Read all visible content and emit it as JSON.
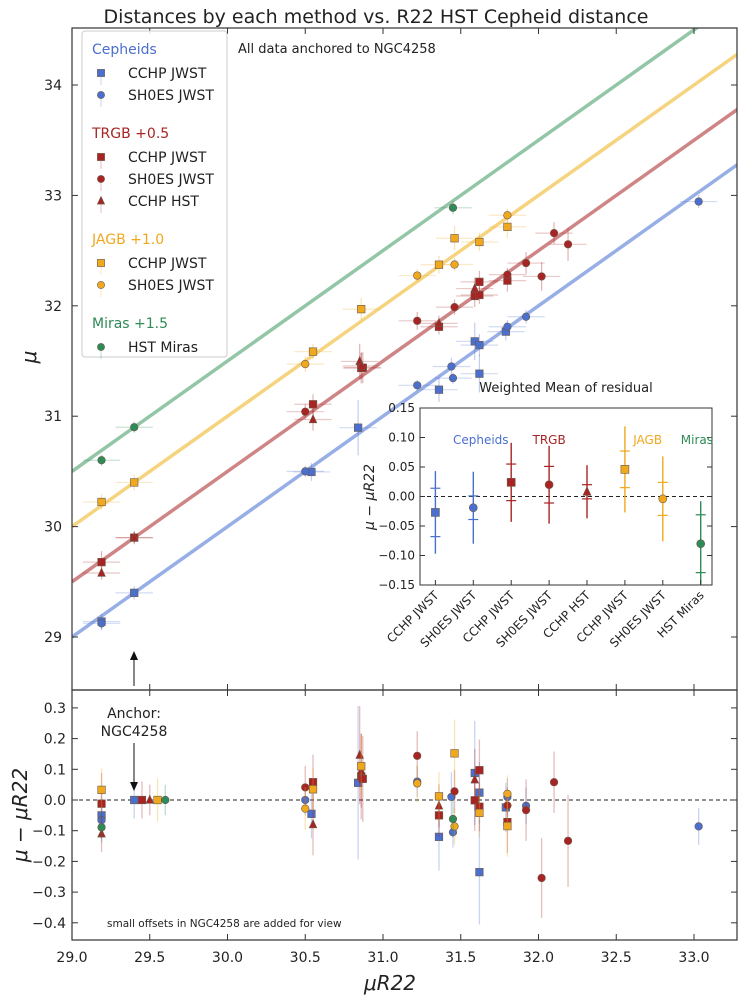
{
  "chart_data": [
    {
      "type": "scatter",
      "panel": "main",
      "title": "Distances by each method vs. R22 HST Cepheid distance",
      "ylabel": "μ",
      "annotation": "All data anchored to NGC4258",
      "xlim": [
        29.0,
        33.3
      ],
      "ylim": [
        28.5,
        34.5
      ],
      "yticks": [
        "29",
        "30",
        "31",
        "32",
        "33",
        "34"
      ],
      "legend_placement": "upper-left",
      "groups": [
        {
          "label": "Cepheids",
          "offset": 0.0,
          "color": "#4a6fcf",
          "line_color": "#97aee6"
        },
        {
          "label": "TRGB +0.5",
          "offset": 0.5,
          "color": "#a82424",
          "line_color": "#cf8585"
        },
        {
          "label": "JAGB +1.0",
          "offset": 1.0,
          "color": "#f0a81e",
          "line_color": "#f6d47f"
        },
        {
          "label": "Miras +1.5",
          "offset": 1.5,
          "color": "#2e8a57",
          "line_color": "#92c6a6"
        }
      ],
      "series": [
        {
          "group": 0,
          "name": "CCHP JWST",
          "marker": "square",
          "color": "#4a6fcf",
          "points": [
            [
              29.19,
              -0.05,
              0.07
            ],
            [
              29.4,
              0,
              0.06
            ],
            [
              30.54,
              -0.045,
              0.08
            ],
            [
              30.84,
              0.056,
              0.25
            ],
            [
              31.36,
              -0.12,
              0.11
            ],
            [
              31.59,
              0.088,
              0.17
            ],
            [
              31.62,
              0.024,
              0.1
            ],
            [
              31.62,
              -0.235,
              0.17
            ],
            [
              31.79,
              -0.024,
              0.08
            ]
          ]
        },
        {
          "group": 0,
          "name": "SH0ES JWST",
          "marker": "circle",
          "color": "#4a6fcf",
          "points": [
            [
              29.19,
              -0.066,
              0.06
            ],
            [
              30.5,
              0,
              0.05
            ],
            [
              31.22,
              0.06,
              0.05
            ],
            [
              31.44,
              0.01,
              0.08
            ],
            [
              31.45,
              -0.105,
              0.05
            ],
            [
              31.8,
              0.01,
              0.06
            ],
            [
              31.92,
              -0.019,
              0.06
            ],
            [
              33.03,
              -0.086,
              0.06
            ]
          ]
        },
        {
          "group": 1,
          "name": "CCHP JWST",
          "marker": "square",
          "color": "#a82424",
          "points": [
            [
              29.19,
              -0.012,
              0.1
            ],
            [
              29.4,
              0,
              0.06
            ],
            [
              30.55,
              0.058,
              0.09
            ],
            [
              30.86,
              0.077,
              0.14
            ],
            [
              30.87,
              0.069,
              0.14
            ],
            [
              31.36,
              -0.05,
              0.07
            ],
            [
              31.59,
              -0.001,
              0.1
            ],
            [
              31.62,
              0.097,
              0.1
            ],
            [
              31.62,
              -0.022,
              0.08
            ],
            [
              31.8,
              -0.072,
              0.1
            ]
          ]
        },
        {
          "group": 1,
          "name": "SH0ES JWST",
          "marker": "circle",
          "color": "#a82424",
          "points": [
            [
              30.5,
              0.041,
              0.07
            ],
            [
              31.22,
              0.144,
              0.08
            ],
            [
              31.46,
              0.028,
              0.07
            ],
            [
              31.8,
              -0.018,
              0.06
            ],
            [
              31.92,
              -0.033,
              0.1
            ],
            [
              32.02,
              -0.254,
              0.13
            ],
            [
              32.1,
              0.058,
              0.1
            ],
            [
              32.19,
              -0.133,
              0.15
            ]
          ]
        },
        {
          "group": 1,
          "name": "CCHP HST",
          "marker": "triangle",
          "color": "#a82424",
          "points": [
            [
              29.19,
              -0.11,
              0.06
            ],
            [
              29.4,
              0,
              0.05
            ],
            [
              30.55,
              -0.08,
              0.1
            ],
            [
              30.85,
              0.146,
              0.16
            ],
            [
              30.86,
              0.095,
              0.12
            ],
            [
              31.36,
              -0.019,
              0.07
            ],
            [
              31.59,
              0.066,
              0.1
            ]
          ]
        },
        {
          "group": 2,
          "name": "CCHP JWST",
          "marker": "square",
          "color": "#f0a81e",
          "points": [
            [
              29.19,
              0.033,
              0.07
            ],
            [
              29.4,
              0,
              0.07
            ],
            [
              30.55,
              0.035,
              0.07
            ],
            [
              30.86,
              0.11,
              0.1
            ],
            [
              31.36,
              0.012,
              0.08
            ],
            [
              31.46,
              0.152,
              0.11
            ],
            [
              31.62,
              -0.042,
              0.08
            ],
            [
              31.8,
              -0.085,
              0.1
            ]
          ]
        },
        {
          "group": 2,
          "name": "SH0ES JWST",
          "marker": "circle",
          "color": "#f0a81e",
          "points": [
            [
              30.5,
              -0.028,
              0.07
            ],
            [
              31.22,
              0.054,
              0.06
            ],
            [
              31.46,
              -0.086,
              0.06
            ],
            [
              31.8,
              0.02,
              0.06
            ]
          ]
        },
        {
          "group": 3,
          "name": "HST Miras",
          "marker": "circle",
          "color": "#2e8a57",
          "points": [
            [
              29.19,
              -0.089,
              0.05
            ],
            [
              29.4,
              0,
              0.05
            ],
            [
              31.45,
              -0.062,
              0.06
            ]
          ]
        }
      ]
    },
    {
      "type": "scatter",
      "panel": "inset",
      "title": "Weighted Mean of residual",
      "ylabel": "μ − μR22",
      "ylim": [
        -0.15,
        0.15
      ],
      "yticks": [
        "0.15",
        "0.10",
        "0.05",
        "0.00",
        "−0.05",
        "−0.10",
        "−0.15"
      ],
      "group_labels": [
        "Cepheids",
        "TRGB",
        "JAGB",
        "Miras"
      ],
      "categories": [
        "CCHP JWST",
        "SH0ES JWST",
        "CCHP JWST",
        "SH0ES JWST",
        "CCHP HST",
        "CCHP JWST",
        "SH0ES JWST",
        "HST Miras"
      ],
      "markers": [
        "square",
        "circle",
        "square",
        "circle",
        "triangle",
        "square",
        "circle",
        "circle"
      ],
      "colors": [
        "#4a6fcf",
        "#4a6fcf",
        "#a82424",
        "#a82424",
        "#a82424",
        "#f0a81e",
        "#f0a81e",
        "#2e8a57"
      ],
      "values": [
        -0.027,
        -0.019,
        0.024,
        0.02,
        0.008,
        0.046,
        -0.004,
        -0.08
      ],
      "err_outer": [
        0.07,
        0.061,
        0.067,
        0.066,
        0.045,
        0.073,
        0.072,
        0.072
      ],
      "err_inner": [
        0.041,
        0.02,
        0.031,
        0.031,
        0.012,
        0.031,
        0.028,
        0.049
      ]
    },
    {
      "type": "scatter",
      "panel": "residual",
      "xlabel": "μR22",
      "ylabel": "μ − μR22",
      "xlim": [
        29.0,
        33.3
      ],
      "ylim": [
        -0.45,
        0.35
      ],
      "xticks": [
        "29.0",
        "29.5",
        "30.0",
        "30.5",
        "31.0",
        "31.5",
        "32.0",
        "32.5",
        "33.0"
      ],
      "yticks": [
        "0.3",
        "0.2",
        "0.1",
        "0.0",
        "−0.1",
        "−0.2",
        "−0.3",
        "−0.4"
      ],
      "anchor_label_line1": "Anchor:",
      "anchor_label_line2": "NGC4258",
      "note": "small offsets in NGC4258 are added for view",
      "series_ref": "same series as main panel (x = μR22, y = residual)"
    }
  ]
}
